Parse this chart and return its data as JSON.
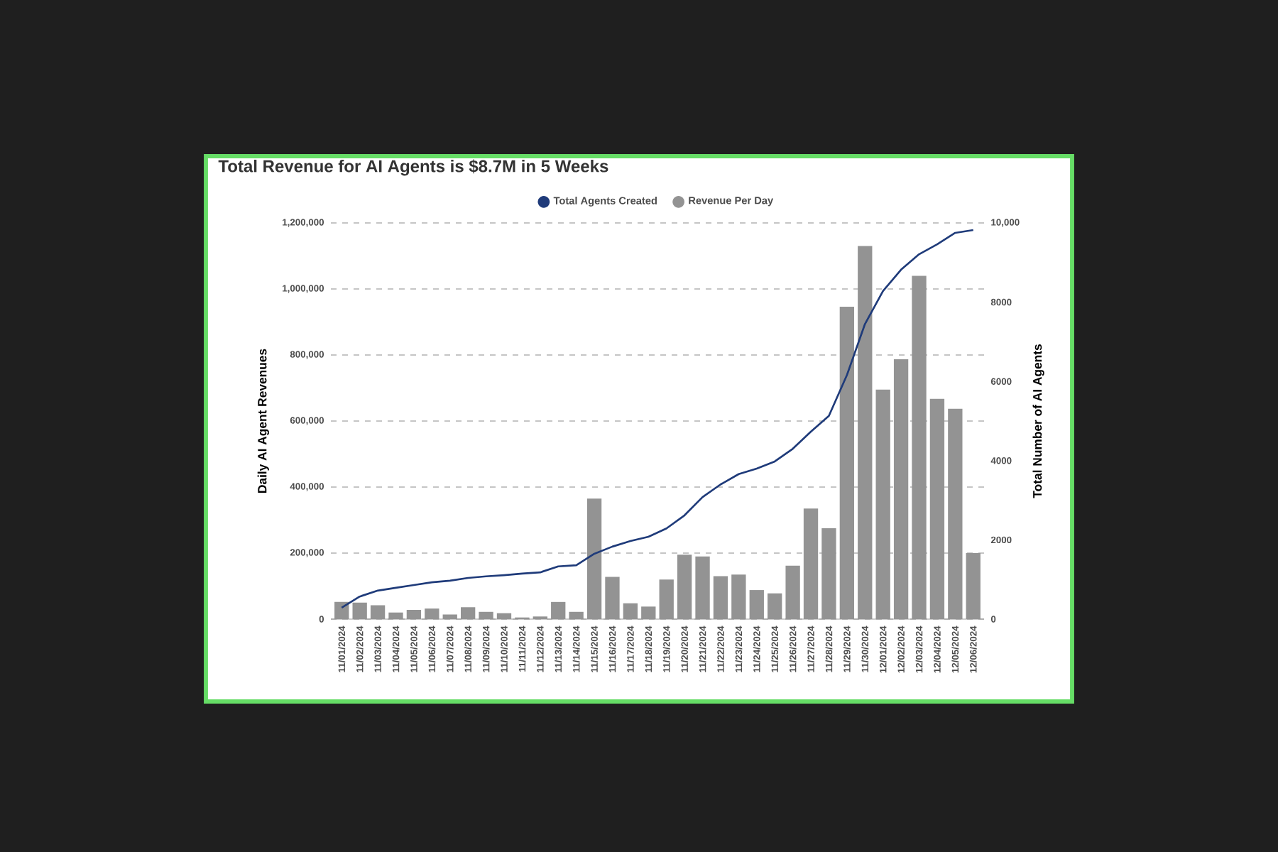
{
  "chart_data": {
    "type": "bar",
    "title": "Total Revenue for AI Agents is $8.7M in 5 Weeks",
    "ylabel": "Daily AI Agent Revenues",
    "y2label": "Total Number of AI Agents",
    "categories": [
      "11/01/2024",
      "11/02/2024",
      "11/03/2024",
      "11/04/2024",
      "11/05/2024",
      "11/06/2024",
      "11/07/2024",
      "11/08/2024",
      "11/09/2024",
      "11/10/2024",
      "11/11/2024",
      "11/12/2024",
      "11/13/2024",
      "11/14/2024",
      "11/15/2024",
      "11/16/2024",
      "11/17/2024",
      "11/18/2024",
      "11/19/2024",
      "11/20/2024",
      "11/21/2024",
      "11/22/2024",
      "11/23/2024",
      "11/24/2024",
      "11/25/2024",
      "11/26/2024",
      "11/27/2024",
      "11/28/2024",
      "11/29/2024",
      "11/30/2024",
      "12/01/2024",
      "12/02/2024",
      "12/03/2024",
      "12/04/2024",
      "12/05/2024",
      "12/06/2024"
    ],
    "series": [
      {
        "name": "Total Agents Created",
        "type": "line",
        "axis": "y2",
        "color": "#1f3b7a",
        "values": [
          290,
          570,
          720,
          790,
          860,
          930,
          970,
          1040,
          1080,
          1110,
          1150,
          1180,
          1330,
          1360,
          1650,
          1830,
          1970,
          2080,
          2290,
          2620,
          3080,
          3400,
          3660,
          3800,
          3980,
          4300,
          4730,
          5130,
          6160,
          7450,
          8280,
          8820,
          9210,
          9460,
          9750,
          9820
        ]
      },
      {
        "name": "Revenue Per Day",
        "color": "#939393",
        "values": [
          52000,
          50000,
          42000,
          20000,
          28000,
          32000,
          14000,
          36000,
          22000,
          18000,
          5000,
          8000,
          52000,
          22000,
          365000,
          128000,
          48000,
          38000,
          120000,
          195000,
          190000,
          130000,
          135000,
          88000,
          78000,
          162000,
          335000,
          275000,
          946000,
          1130000,
          695000,
          787000,
          1040000,
          667000,
          637000,
          200000
        ]
      }
    ],
    "ylim": [
      0,
      1200000
    ],
    "yticks": [
      {
        "value": 0,
        "label": "0"
      },
      {
        "value": 200000,
        "label": "200,000"
      },
      {
        "value": 400000,
        "label": "400,000"
      },
      {
        "value": 600000,
        "label": "600,000"
      },
      {
        "value": 800000,
        "label": "800,000"
      },
      {
        "value": 1000000,
        "label": "1,000,000"
      },
      {
        "value": 1200000,
        "label": "1,200,000"
      }
    ],
    "y2lim": [
      0,
      10000
    ],
    "y2ticks": [
      0,
      2000,
      4000,
      6000,
      8000,
      {
        "value": 10000,
        "label": "10,000"
      }
    ],
    "grid": "y",
    "legend": "top"
  }
}
